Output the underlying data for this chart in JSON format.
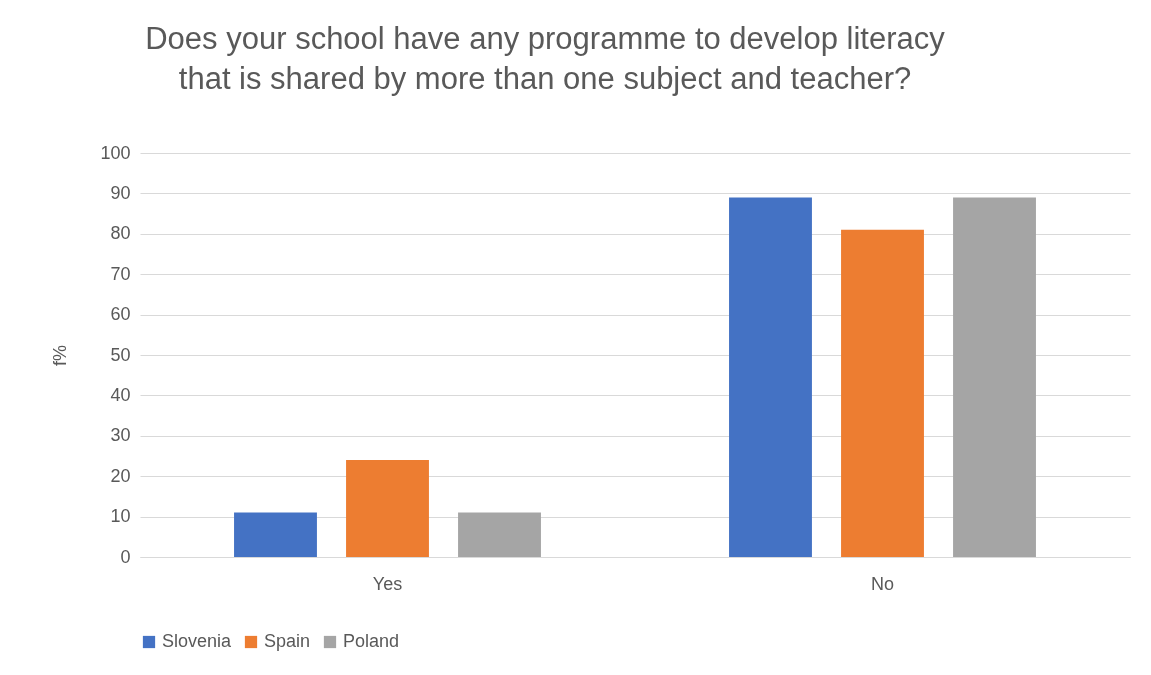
{
  "chart_data": {
    "type": "bar",
    "title": [
      "Does your school have any programme to develop literacy",
      "that is shared by more than one subject and teacher?"
    ],
    "ylabel": "f%",
    "categories": [
      "Yes",
      "No"
    ],
    "series": [
      {
        "name": "Slovenia",
        "color": "#4472c4",
        "values": [
          11,
          89
        ]
      },
      {
        "name": "Spain",
        "color": "#ed7d31",
        "values": [
          24,
          81
        ]
      },
      {
        "name": "Poland",
        "color": "#a5a5a5",
        "values": [
          11,
          89
        ]
      }
    ],
    "ylim": [
      0,
      100
    ],
    "yticks": [
      0,
      10,
      20,
      30,
      40,
      50,
      60,
      70,
      80,
      90,
      100
    ],
    "grid": "y",
    "legend": "bottom"
  }
}
